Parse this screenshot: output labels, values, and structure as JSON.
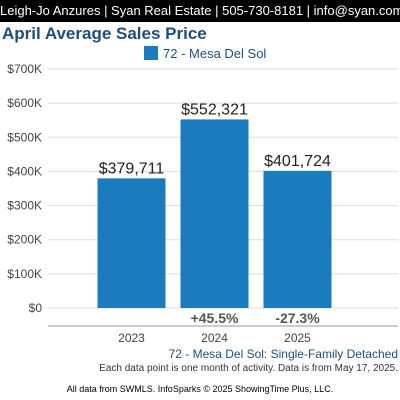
{
  "header": {
    "banner": "Leigh-Jo Anzures | Syan Real Estate | 505-730-8181 | info@syan.com",
    "title": "April Average Sales Price"
  },
  "colors": {
    "bar": "#1b7bbf",
    "title": "#1f4e79",
    "change": "#555555",
    "grid": "#dddddd"
  },
  "chart_data": {
    "type": "bar",
    "title": "April Average Sales Price",
    "categories": [
      "2023",
      "2024",
      "2025"
    ],
    "series": [
      {
        "name": "72 - Mesa Del Sol",
        "values": [
          379711,
          552321,
          401724
        ]
      }
    ],
    "data_labels": [
      "$379,711",
      "$552,321",
      "$401,724"
    ],
    "changes": [
      "",
      "+45.5%",
      "-27.3%"
    ],
    "y_ticks": [
      "$0",
      "$100K",
      "$200K",
      "$300K",
      "$400K",
      "$500K",
      "$600K",
      "$700K"
    ],
    "ylim": [
      0,
      700000
    ],
    "grid": true,
    "legend": "top-center",
    "xlabel": "",
    "ylabel": ""
  },
  "footer": {
    "subtitle": "72 - Mesa Del Sol: Single-Family Detached",
    "note": "Each data point is one month of activity. Data is from May 17, 2025.",
    "source": "All data from SWMLS. InfoSparks © 2025 ShowingTime Plus, LLC."
  }
}
